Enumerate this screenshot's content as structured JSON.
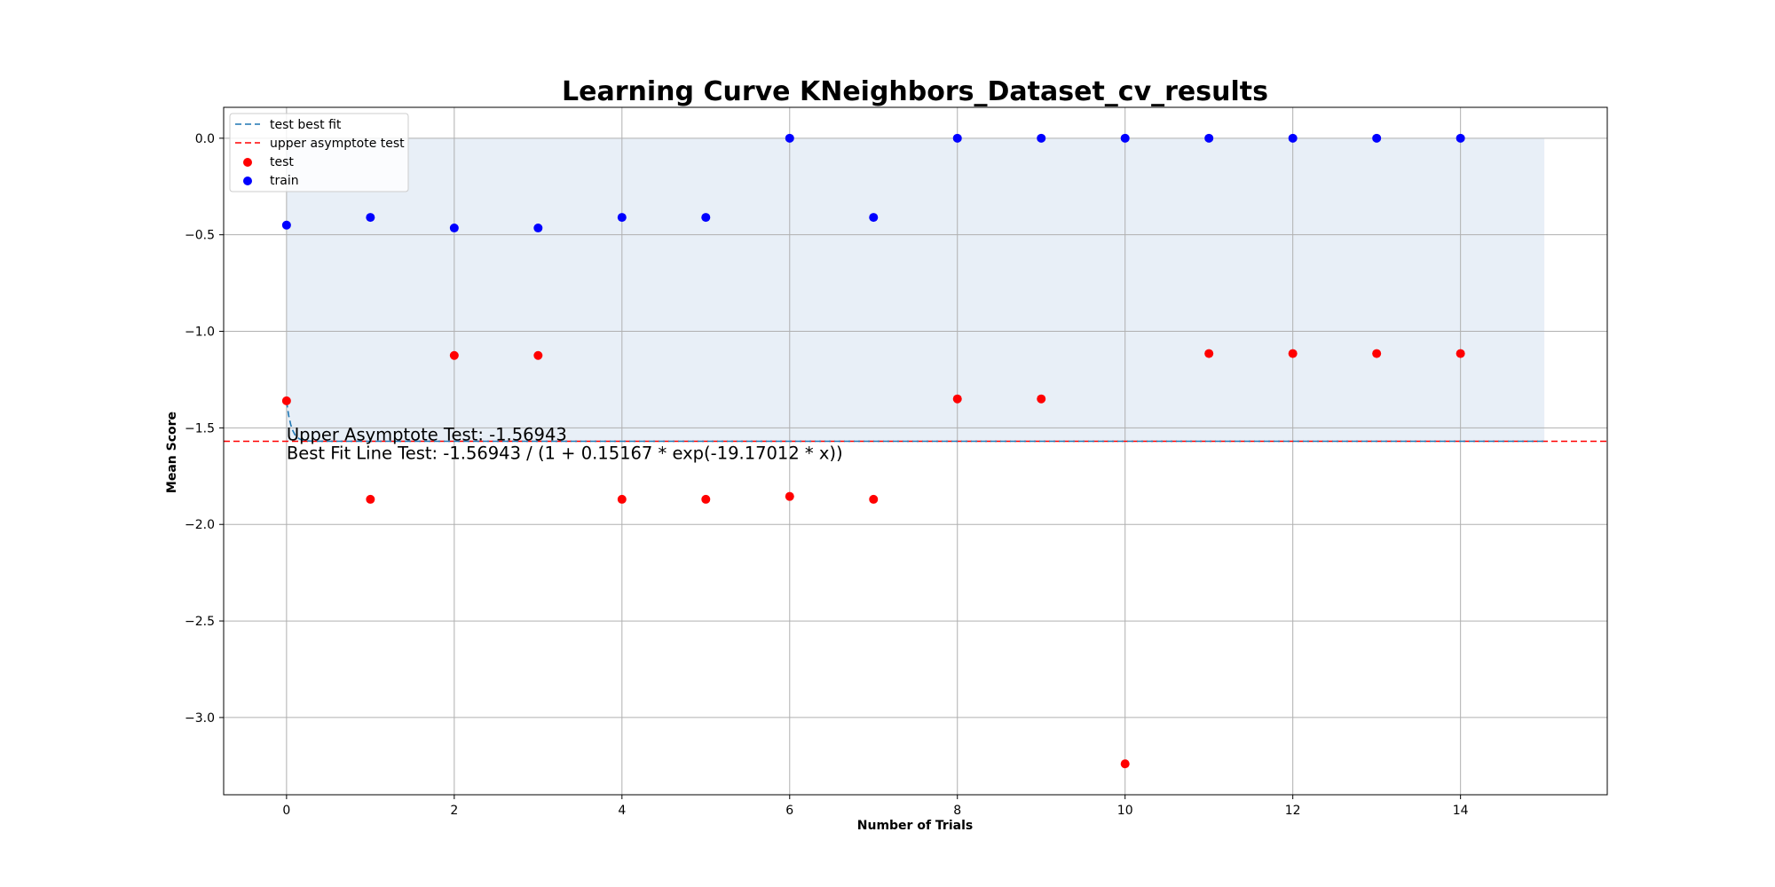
{
  "chart_data": {
    "type": "scatter",
    "title": "Learning Curve KNeighbors_Dataset_cv_results",
    "xlabel": "Number of Trials",
    "ylabel": "Mean Score",
    "xlim": [
      -0.75,
      15.75
    ],
    "ylim": [
      -3.4,
      0.16
    ],
    "xticks": [
      0,
      2,
      4,
      6,
      8,
      10,
      12,
      14
    ],
    "yticks": [
      0.0,
      -0.5,
      -1.0,
      -1.5,
      -2.0,
      -2.5,
      -3.0
    ],
    "xtick_labels": [
      "0",
      "2",
      "4",
      "6",
      "8",
      "10",
      "12",
      "14"
    ],
    "ytick_labels": [
      "0.0",
      "−0.5",
      "−1.0",
      "−1.5",
      "−2.0",
      "−2.5",
      "−3.0"
    ],
    "grid": true,
    "legend_position": "upper-left",
    "legend": [
      {
        "label": "test best fit",
        "kind": "line",
        "color": "#1f77b4",
        "dash": true
      },
      {
        "label": "upper asymptote test",
        "kind": "line",
        "color": "#ff0000",
        "dash": true
      },
      {
        "label": "test",
        "kind": "marker",
        "color": "#ff0000"
      },
      {
        "label": "train",
        "kind": "marker",
        "color": "#0000ff"
      }
    ],
    "series": [
      {
        "name": "test",
        "color": "#ff0000",
        "x": [
          0,
          1,
          2,
          3,
          4,
          5,
          6,
          7,
          8,
          9,
          10,
          11,
          12,
          13,
          14
        ],
        "y": [
          -1.36,
          -1.87,
          -1.125,
          -1.125,
          -1.87,
          -1.87,
          -1.855,
          -1.87,
          -1.35,
          -1.35,
          -3.24,
          -1.115,
          -1.115,
          -1.115,
          -1.115
        ]
      },
      {
        "name": "train",
        "color": "#0000ff",
        "x": [
          0,
          1,
          2,
          3,
          4,
          5,
          6,
          7,
          8,
          9,
          10,
          11,
          12,
          13,
          14
        ],
        "y": [
          -0.45,
          -0.41,
          -0.465,
          -0.465,
          -0.41,
          -0.41,
          0.0,
          -0.41,
          0.0,
          0.0,
          0.0,
          0.0,
          0.0,
          0.0,
          0.0
        ]
      }
    ],
    "best_fit": {
      "name": "test best fit",
      "color": "#1f77b4",
      "L": -1.56943,
      "a": 0.15167,
      "k": 19.17012,
      "x_range": [
        0,
        15
      ]
    },
    "asymptote": {
      "name": "upper asymptote test",
      "color": "#ff0000",
      "y": -1.56943
    },
    "shaded_region": {
      "color": "#dce6f2",
      "x_range": [
        0,
        15
      ],
      "y_range": [
        -1.56943,
        0.0
      ]
    },
    "annotations": [
      {
        "text": "Upper Asymptote Test: -1.56943",
        "x": 0,
        "y": -1.56943
      },
      {
        "text": "Best Fit Line Test: -1.56943 / (1 + 0.15167 * exp(-19.17012 * x))",
        "x": 0,
        "y": -1.56943
      }
    ]
  }
}
